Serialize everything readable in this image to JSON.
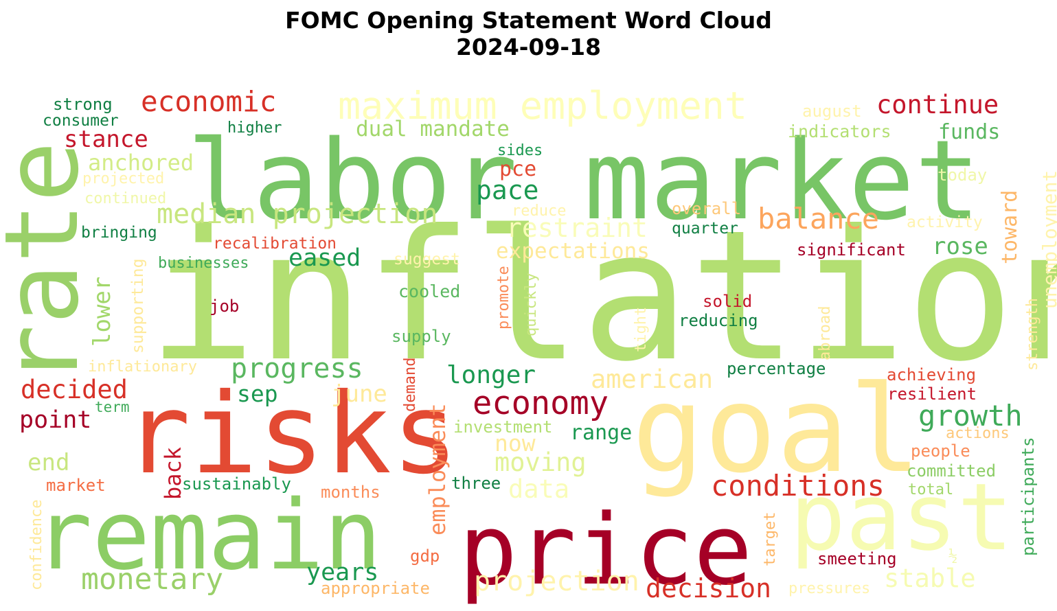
{
  "chart_data": {
    "type": "wordcloud",
    "title": "FOMC Opening Statement Word Cloud",
    "subtitle": "2024-09-18",
    "colormap": "RdYlGn",
    "words": [
      {
        "text": "inflation",
        "weight": 100,
        "color": "#b3df72"
      },
      {
        "text": "labor market",
        "weight": 72,
        "color": "#78c566"
      },
      {
        "text": "risks",
        "weight": 64,
        "color": "#e34a33"
      },
      {
        "text": "goal",
        "weight": 64,
        "color": "#fee999"
      },
      {
        "text": "rate",
        "weight": 60,
        "color": "#9ad069"
      },
      {
        "text": "remain",
        "weight": 58,
        "color": "#8ccd65"
      },
      {
        "text": "price",
        "weight": 58,
        "color": "#a50026"
      },
      {
        "text": "past",
        "weight": 56,
        "color": "#f6fbb2"
      },
      {
        "text": "maximum employment",
        "weight": 26,
        "color": "#fefeb8"
      },
      {
        "text": "economy",
        "weight": 24,
        "color": "#a50026"
      },
      {
        "text": "conditions",
        "weight": 22,
        "color": "#d73027"
      },
      {
        "text": "monetary",
        "weight": 22,
        "color": "#9ad069"
      },
      {
        "text": "median projection",
        "weight": 22,
        "color": "#c8e67f"
      },
      {
        "text": "balance",
        "weight": 21,
        "color": "#fca55d"
      },
      {
        "text": "progress",
        "weight": 21,
        "color": "#5ab760"
      },
      {
        "text": "growth",
        "weight": 21,
        "color": "#3faa59"
      },
      {
        "text": "economic",
        "weight": 20,
        "color": "#d73027"
      },
      {
        "text": "projection",
        "weight": 20,
        "color": "#fff3ac"
      },
      {
        "text": "decision",
        "weight": 20,
        "color": "#d73027"
      },
      {
        "text": "restraint",
        "weight": 20,
        "color": "#f9fcb8"
      },
      {
        "text": "continue",
        "weight": 19,
        "color": "#c4162b"
      },
      {
        "text": "american",
        "weight": 19,
        "color": "#fee999"
      },
      {
        "text": "stable",
        "weight": 19,
        "color": "#f6fbb2"
      },
      {
        "text": "decided",
        "weight": 19,
        "color": "#d73027"
      },
      {
        "text": "pace",
        "weight": 19,
        "color": "#1a9850"
      },
      {
        "text": "moving",
        "weight": 19,
        "color": "#e1f295"
      },
      {
        "text": "data",
        "weight": 19,
        "color": "#f9fcb8"
      },
      {
        "text": "longer",
        "weight": 18,
        "color": "#1a9850"
      },
      {
        "text": "years",
        "weight": 18,
        "color": "#1a9850"
      },
      {
        "text": "stance",
        "weight": 18,
        "color": "#c4162b"
      },
      {
        "text": "point",
        "weight": 18,
        "color": "#a50026"
      },
      {
        "text": "rose",
        "weight": 18,
        "color": "#5ab760"
      },
      {
        "text": "eased",
        "weight": 18,
        "color": "#1a9850"
      },
      {
        "text": "expectations",
        "weight": 17,
        "color": "#fee999"
      },
      {
        "text": "dual mandate",
        "weight": 17,
        "color": "#a2d76a"
      },
      {
        "text": "anchored",
        "weight": 17,
        "color": "#d3ec87"
      },
      {
        "text": "sep",
        "weight": 17,
        "color": "#1a9850"
      },
      {
        "text": "now",
        "weight": 17,
        "color": "#fee999"
      },
      {
        "text": "end",
        "weight": 17,
        "color": "#c8e67f"
      },
      {
        "text": "june",
        "weight": 17,
        "color": "#fee999"
      },
      {
        "text": "back",
        "weight": 17,
        "color": "#c4162b"
      },
      {
        "text": "employment",
        "weight": 17,
        "color": "#fa8c59"
      },
      {
        "text": "lower",
        "weight": 17,
        "color": "#a2d76a"
      },
      {
        "text": "funds",
        "weight": 16,
        "color": "#5ab760"
      },
      {
        "text": "toward",
        "weight": 16,
        "color": "#fdb768"
      },
      {
        "text": "unemployment",
        "weight": 16,
        "color": "#fff3ac"
      },
      {
        "text": "range",
        "weight": 16,
        "color": "#1a9850"
      },
      {
        "text": "pce",
        "weight": 16,
        "color": "#e34a33"
      },
      {
        "text": "strong",
        "weight": 15,
        "color": "#107f43"
      },
      {
        "text": "consumer",
        "weight": 14,
        "color": "#107f43"
      },
      {
        "text": "higher",
        "weight": 14,
        "color": "#107f43"
      },
      {
        "text": "august",
        "weight": 14,
        "color": "#fff3ac"
      },
      {
        "text": "indicators",
        "weight": 14,
        "color": "#b3df72"
      },
      {
        "text": "sides",
        "weight": 14,
        "color": "#1a9850"
      },
      {
        "text": "today",
        "weight": 14,
        "color": "#f0f7a8"
      },
      {
        "text": "projected",
        "weight": 14,
        "color": "#fff3ac"
      },
      {
        "text": "continued",
        "weight": 14,
        "color": "#f0f7a8"
      },
      {
        "text": "reduce",
        "weight": 14,
        "color": "#fff3ac"
      },
      {
        "text": "overall",
        "weight": 14,
        "color": "#fdc87a"
      },
      {
        "text": "activity",
        "weight": 14,
        "color": "#fff3ac"
      },
      {
        "text": "quarter",
        "weight": 14,
        "color": "#107f43"
      },
      {
        "text": "bringing",
        "weight": 14,
        "color": "#107f43"
      },
      {
        "text": "recalibration",
        "weight": 14,
        "color": "#e34a33"
      },
      {
        "text": "significant",
        "weight": 14,
        "color": "#a50026"
      },
      {
        "text": "businesses",
        "weight": 14,
        "color": "#3faa59"
      },
      {
        "text": "suggest",
        "weight": 14,
        "color": "#fff3ac"
      },
      {
        "text": "supporting",
        "weight": 14,
        "color": "#fee999"
      },
      {
        "text": "promote",
        "weight": 14,
        "color": "#fa8c59"
      },
      {
        "text": "quickly",
        "weight": 14,
        "color": "#c8e67f"
      },
      {
        "text": "cooled",
        "weight": 14,
        "color": "#5ab760"
      },
      {
        "text": "job",
        "weight": 14,
        "color": "#a50026"
      },
      {
        "text": "solid",
        "weight": 14,
        "color": "#c4162b"
      },
      {
        "text": "reducing",
        "weight": 14,
        "color": "#107f43"
      },
      {
        "text": "abroad",
        "weight": 14,
        "color": "#fee999"
      },
      {
        "text": "strength",
        "weight": 14,
        "color": "#fee999"
      },
      {
        "text": "tight",
        "weight": 14,
        "color": "#fff3ac"
      },
      {
        "text": "supply",
        "weight": 14,
        "color": "#5ab760"
      },
      {
        "text": "inflationary",
        "weight": 14,
        "color": "#fee999"
      },
      {
        "text": "percentage",
        "weight": 14,
        "color": "#107f43"
      },
      {
        "text": "achieving",
        "weight": 14,
        "color": "#e34a33"
      },
      {
        "text": "resilient",
        "weight": 14,
        "color": "#c4162b"
      },
      {
        "text": "demand",
        "weight": 14,
        "color": "#e34a33"
      },
      {
        "text": "term",
        "weight": 13,
        "color": "#3faa59"
      },
      {
        "text": "investment",
        "weight": 14,
        "color": "#b3df72"
      },
      {
        "text": "actions",
        "weight": 14,
        "color": "#fdc87a"
      },
      {
        "text": "people",
        "weight": 14,
        "color": "#fa8c59"
      },
      {
        "text": "participants",
        "weight": 14,
        "color": "#3faa59"
      },
      {
        "text": "committed",
        "weight": 14,
        "color": "#8ccd65"
      },
      {
        "text": "total",
        "weight": 14,
        "color": "#a2d76a"
      },
      {
        "text": "market",
        "weight": 14,
        "color": "#f46d43"
      },
      {
        "text": "sustainably",
        "weight": 14,
        "color": "#1a9850"
      },
      {
        "text": "months",
        "weight": 14,
        "color": "#fa8c59"
      },
      {
        "text": "three",
        "weight": 14,
        "color": "#107f43"
      },
      {
        "text": "confidence",
        "weight": 14,
        "color": "#fee999"
      },
      {
        "text": "target",
        "weight": 14,
        "color": "#fdb768"
      },
      {
        "text": "½",
        "weight": 14,
        "color": "#f0f7a8"
      },
      {
        "text": "smeeting",
        "weight": 14,
        "color": "#a50026"
      },
      {
        "text": "gdp",
        "weight": 14,
        "color": "#f46d43"
      },
      {
        "text": "appropriate",
        "weight": 14,
        "color": "#fdb768"
      },
      {
        "text": "pressures",
        "weight": 14,
        "color": "#fff3ac"
      }
    ]
  }
}
